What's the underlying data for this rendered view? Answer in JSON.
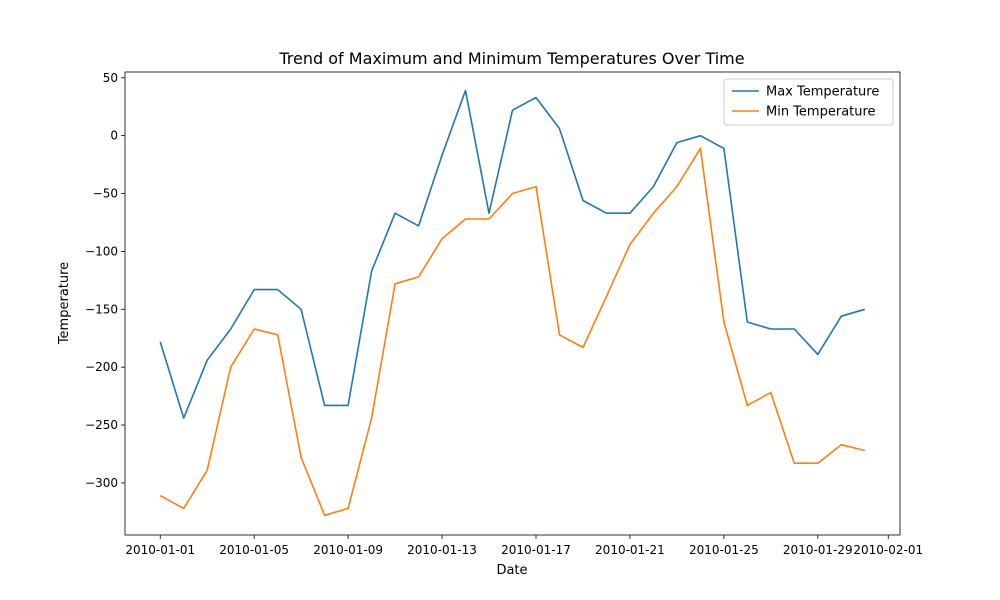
{
  "chart_data": {
    "type": "line",
    "title": "Trend of Maximum and Minimum Temperatures Over Time",
    "xlabel": "Date",
    "ylabel": "Temperature",
    "x": [
      "2010-01-01",
      "2010-01-02",
      "2010-01-03",
      "2010-01-04",
      "2010-01-05",
      "2010-01-06",
      "2010-01-07",
      "2010-01-08",
      "2010-01-09",
      "2010-01-10",
      "2010-01-11",
      "2010-01-12",
      "2010-01-13",
      "2010-01-14",
      "2010-01-15",
      "2010-01-16",
      "2010-01-17",
      "2010-01-18",
      "2010-01-19",
      "2010-01-20",
      "2010-01-21",
      "2010-01-22",
      "2010-01-23",
      "2010-01-24",
      "2010-01-25",
      "2010-01-26",
      "2010-01-27",
      "2010-01-28",
      "2010-01-29",
      "2010-01-30",
      "2010-01-31"
    ],
    "x_ticks": [
      "2010-01-01",
      "2010-01-05",
      "2010-01-09",
      "2010-01-13",
      "2010-01-17",
      "2010-01-21",
      "2010-01-25",
      "2010-01-29",
      "2010-02-01"
    ],
    "xlim": [
      "2010-01-01",
      "2010-01-31"
    ],
    "y_ticks": [
      50,
      0,
      -50,
      -100,
      -150,
      -200,
      -250,
      -300
    ],
    "ylim": [
      -345,
      55
    ],
    "grid": false,
    "legend_position": "top-right",
    "series": [
      {
        "name": "Max Temperature",
        "color": "#1f77b4",
        "values": [
          -178,
          -244,
          -194,
          -167,
          -133,
          -133,
          -150,
          -233,
          -233,
          -117,
          -67,
          -78,
          -17,
          39,
          -67,
          22,
          33,
          6,
          -56,
          -67,
          -67,
          -44,
          -6,
          0,
          -11,
          -161,
          -167,
          -167,
          -189,
          -156,
          -150
        ]
      },
      {
        "name": "Min Temperature",
        "color": "#ff7f0e",
        "values": [
          -311,
          -322,
          -289,
          -200,
          -167,
          -172,
          -278,
          -328,
          -322,
          -244,
          -128,
          -122,
          -89,
          -72,
          -72,
          -50,
          -44,
          -172,
          -183,
          -139,
          -94,
          -67,
          -44,
          -11,
          -161,
          -233,
          -222,
          -283,
          -283,
          -267,
          -272
        ]
      }
    ]
  }
}
